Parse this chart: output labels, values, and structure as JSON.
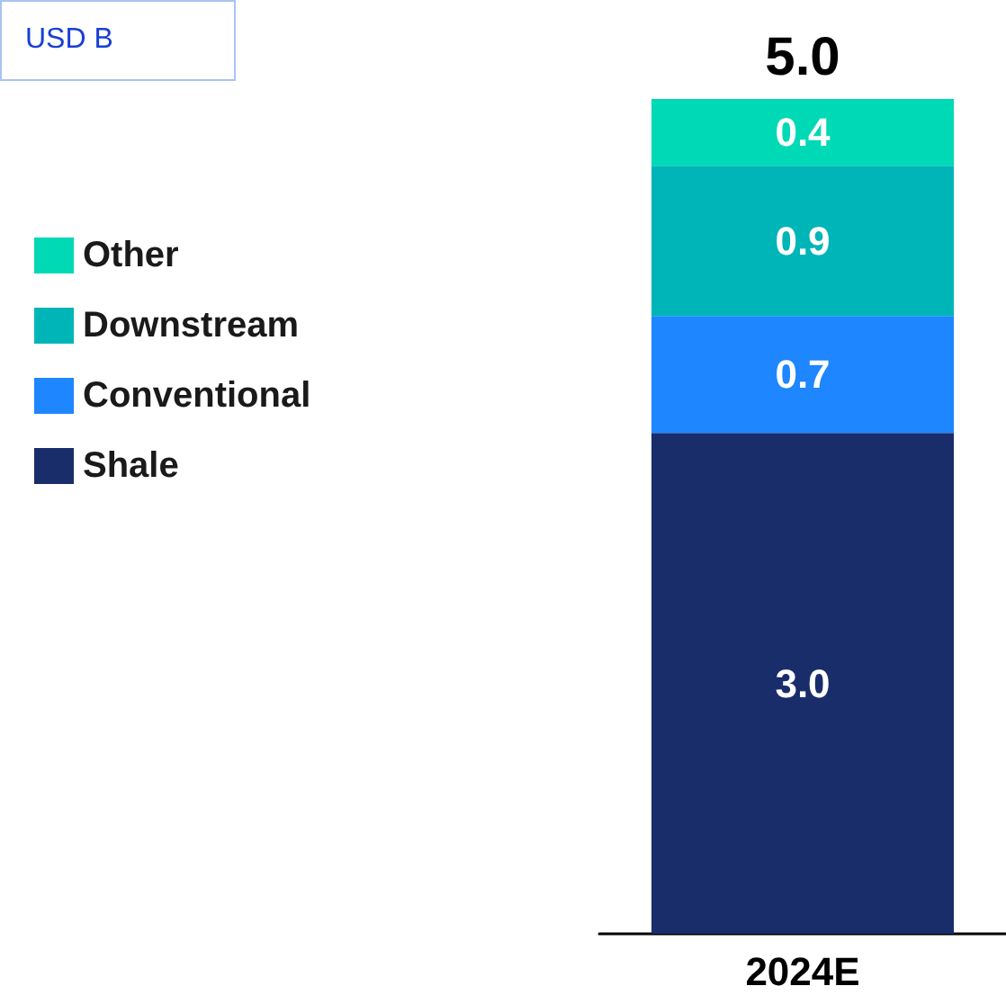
{
  "chart_data": {
    "type": "bar",
    "stacked": true,
    "categories": [
      "2024E"
    ],
    "series": [
      {
        "name": "Shale",
        "color": "#1a2d6b",
        "values": [
          3.0
        ],
        "value_labels": [
          "3.0"
        ]
      },
      {
        "name": "Conventional",
        "color": "#1e86ff",
        "values": [
          0.7
        ],
        "value_labels": [
          "0.7"
        ]
      },
      {
        "name": "Downstream",
        "color": "#00b5b8",
        "values": [
          0.9
        ],
        "value_labels": [
          "0.9"
        ]
      },
      {
        "name": "Other",
        "color": "#00d9b5",
        "values": [
          0.4
        ],
        "value_labels": [
          "0.4"
        ]
      }
    ],
    "totals": [
      "5.0"
    ],
    "legend": "left",
    "annotations": [
      "USD B"
    ]
  }
}
